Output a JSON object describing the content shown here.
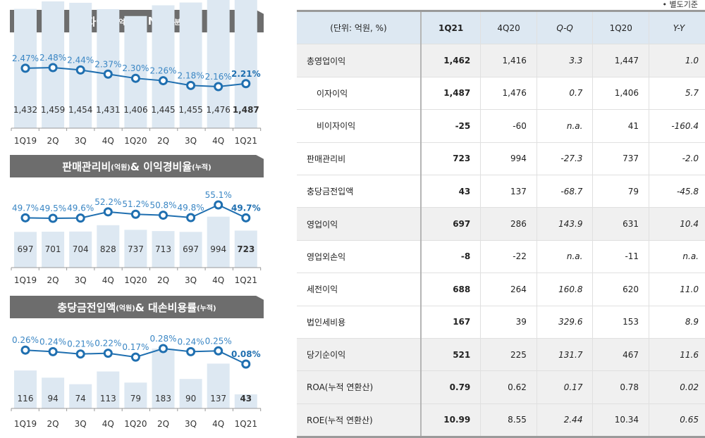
{
  "note": "• 별도기준",
  "chart_data": [
    {
      "type": "bar+line",
      "title": "이자이익",
      "title_unit": "(억원)",
      "title2": " & NIM",
      "title2_unit": "(분기중)",
      "categories": [
        "1Q19",
        "2Q",
        "3Q",
        "4Q",
        "1Q20",
        "2Q",
        "3Q",
        "4Q",
        "1Q21"
      ],
      "bar_values": [
        1432,
        1459,
        1454,
        1431,
        1406,
        1445,
        1455,
        1476,
        1487
      ],
      "bar_labels": [
        "1,432",
        "1,459",
        "1,454",
        "1,431",
        "1,406",
        "1,445",
        "1,455",
        "1,476",
        "1,487"
      ],
      "line_values": [
        2.47,
        2.48,
        2.44,
        2.37,
        2.3,
        2.26,
        2.18,
        2.16,
        2.21
      ],
      "line_labels": [
        "2.47%",
        "2.48%",
        "2.44%",
        "2.37%",
        "2.30%",
        "2.26%",
        "2.18%",
        "2.16%",
        "2.21%"
      ],
      "bar_color": "#dde8f2",
      "line_color": "#1f6fb0"
    },
    {
      "type": "bar+line",
      "title": "판매관리비",
      "title_unit": "(억원)",
      "title2": " & 이익경비율",
      "title2_unit": "(누적)",
      "categories": [
        "1Q19",
        "2Q",
        "3Q",
        "4Q",
        "1Q20",
        "2Q",
        "3Q",
        "4Q",
        "1Q21"
      ],
      "bar_values": [
        697,
        701,
        704,
        828,
        737,
        713,
        697,
        994,
        723
      ],
      "bar_labels": [
        "697",
        "701",
        "704",
        "828",
        "737",
        "713",
        "697",
        "994",
        "723"
      ],
      "line_values": [
        49.7,
        49.5,
        49.6,
        52.2,
        51.2,
        50.8,
        49.8,
        55.1,
        49.7
      ],
      "line_labels": [
        "49.7%",
        "49.5%",
        "49.6%",
        "52.2%",
        "51.2%",
        "50.8%",
        "49.8%",
        "55.1%",
        "49.7%"
      ],
      "bar_color": "#dde8f2",
      "line_color": "#1f6fb0"
    },
    {
      "type": "bar+line",
      "title": "충당금전입액",
      "title_unit": "(억원)",
      "title2": " & 대손비용률",
      "title2_unit": "(누적)",
      "categories": [
        "1Q19",
        "2Q",
        "3Q",
        "4Q",
        "1Q20",
        "2Q",
        "3Q",
        "4Q",
        "1Q21"
      ],
      "bar_values": [
        116,
        94,
        74,
        113,
        79,
        183,
        90,
        137,
        43
      ],
      "bar_labels": [
        "116",
        "94",
        "74",
        "113",
        "79",
        "183",
        "90",
        "137",
        "43"
      ],
      "line_values": [
        0.26,
        0.24,
        0.21,
        0.22,
        0.17,
        0.28,
        0.24,
        0.25,
        0.08
      ],
      "line_labels": [
        "0.26%",
        "0.24%",
        "0.21%",
        "0.22%",
        "0.17%",
        "0.28%",
        "0.24%",
        "0.25%",
        "0.08%"
      ],
      "bar_color": "#dde8f2",
      "line_color": "#1f6fb0"
    }
  ],
  "table": {
    "headers": [
      "(단위: 억원, %)",
      "1Q21",
      "4Q20",
      "Q-Q",
      "1Q20",
      "Y-Y"
    ],
    "rows": [
      {
        "label": "총영업이익",
        "cells": [
          "1,462",
          "1,416",
          "3.3",
          "1,447",
          "1.0"
        ],
        "shaded": true
      },
      {
        "label": "이자이익",
        "cells": [
          "1,487",
          "1,476",
          "0.7",
          "1,406",
          "5.7"
        ],
        "sub": true
      },
      {
        "label": "비이자이익",
        "cells": [
          "-25",
          "-60",
          "n.a.",
          "41",
          "-160.4"
        ],
        "sub": true
      },
      {
        "label": "판매관리비",
        "cells": [
          "723",
          "994",
          "-27.3",
          "737",
          "-2.0"
        ]
      },
      {
        "label": "충당금전입액",
        "cells": [
          "43",
          "137",
          "-68.7",
          "79",
          "-45.8"
        ]
      },
      {
        "label": "영업이익",
        "cells": [
          "697",
          "286",
          "143.9",
          "631",
          "10.4"
        ],
        "shaded": true
      },
      {
        "label": "영업외손익",
        "cells": [
          "-8",
          "-22",
          "n.a.",
          "-11",
          "n.a."
        ]
      },
      {
        "label": "세전이익",
        "cells": [
          "688",
          "264",
          "160.8",
          "620",
          "11.0"
        ]
      },
      {
        "label": "법인세비용",
        "cells": [
          "167",
          "39",
          "329.6",
          "153",
          "8.9"
        ]
      },
      {
        "label": "당기순이익",
        "cells": [
          "521",
          "225",
          "131.7",
          "467",
          "11.6"
        ],
        "shaded": true
      },
      {
        "label": "ROA(누적 연환산)",
        "cells": [
          "0.79",
          "0.62",
          "0.17",
          "0.78",
          "0.02"
        ],
        "shaded": true
      },
      {
        "label": "ROE(누적 연환산)",
        "cells": [
          "10.99",
          "8.55",
          "2.44",
          "10.34",
          "0.65"
        ],
        "shaded": true
      }
    ]
  }
}
